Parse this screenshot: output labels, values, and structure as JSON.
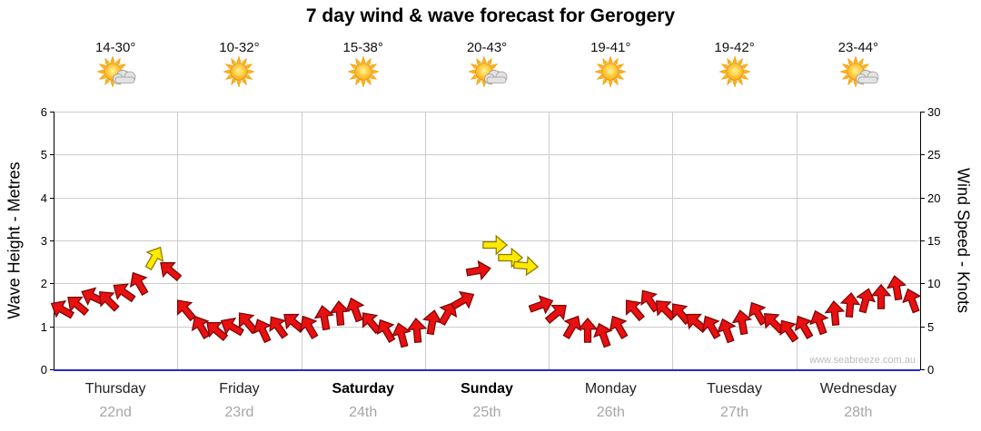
{
  "title": "7 day wind & wave forecast for Gerogery",
  "watermark": "www.seabreeze.com.au",
  "axes": {
    "left": {
      "label": "Wave Height - Metres",
      "range": [
        0,
        6
      ],
      "ticks": [
        "0",
        "1",
        "2",
        "3",
        "4",
        "5",
        "6"
      ]
    },
    "right": {
      "label": "Wind Speed - Knots",
      "range": [
        0,
        30
      ],
      "ticks": [
        "0",
        "5",
        "10",
        "15",
        "20",
        "25",
        "30"
      ]
    }
  },
  "days": [
    {
      "name": "Thursday",
      "date": "22nd",
      "temp": "14-30°",
      "icon": "sun-cloud-icon",
      "bold": false
    },
    {
      "name": "Friday",
      "date": "23rd",
      "temp": "10-32°",
      "icon": "sun-icon",
      "bold": false
    },
    {
      "name": "Saturday",
      "date": "24th",
      "temp": "15-38°",
      "icon": "sun-icon",
      "bold": true
    },
    {
      "name": "Sunday",
      "date": "25th",
      "temp": "20-43°",
      "icon": "sun-cloud-icon",
      "bold": true
    },
    {
      "name": "Monday",
      "date": "26th",
      "temp": "19-41°",
      "icon": "sun-icon",
      "bold": false
    },
    {
      "name": "Tuesday",
      "date": "27th",
      "temp": "19-42°",
      "icon": "sun-icon",
      "bold": false
    },
    {
      "name": "Wednesday",
      "date": "28th",
      "temp": "23-44°",
      "icon": "sun-cloud-icon",
      "bold": false
    }
  ],
  "colors": {
    "arrow_red": "#e81010",
    "arrow_red_stroke": "#7a0606",
    "arrow_yellow": "#ffe900",
    "arrow_yellow_stroke": "#8a7a00",
    "grid": "#cccccc",
    "axis_bottom_blue": "#2a2acc",
    "date_text": "#a6a6a6"
  },
  "chart_data": {
    "type": "scatter",
    "marker": "wind-arrow",
    "title": "7 day wind & wave forecast for Gerogery",
    "x_unit": "3-hourly slots, 8 per day, 7 days (Thu 22nd - Wed 28th)",
    "y_left_label": "Wave Height - Metres",
    "y_left_range": [
      0,
      6
    ],
    "y_right_label": "Wind Speed - Knots",
    "y_right_range": [
      0,
      30
    ],
    "point_format": "d=day index (0=Thursday), s=slot within day, k=wind speed knots (right axis), a=arrow angle degrees (0=pointing right, clockwise), c=arrow color",
    "points": [
      {
        "d": 0,
        "s": 0,
        "k": 7.0,
        "a": -150,
        "c": "red"
      },
      {
        "d": 0,
        "s": 1,
        "k": 7.5,
        "a": -140,
        "c": "red"
      },
      {
        "d": 0,
        "s": 2,
        "k": 8.5,
        "a": -155,
        "c": "red"
      },
      {
        "d": 0,
        "s": 3,
        "k": 8.0,
        "a": -135,
        "c": "red"
      },
      {
        "d": 0,
        "s": 4,
        "k": 9.0,
        "a": -145,
        "c": "red"
      },
      {
        "d": 0,
        "s": 5,
        "k": 10.0,
        "a": -120,
        "c": "red"
      },
      {
        "d": 0,
        "s": 6,
        "k": 13.0,
        "a": -60,
        "c": "yellow"
      },
      {
        "d": 0,
        "s": 7,
        "k": 11.5,
        "a": -140,
        "c": "red"
      },
      {
        "d": 1,
        "s": 0,
        "k": 7.0,
        "a": -130,
        "c": "red"
      },
      {
        "d": 1,
        "s": 1,
        "k": 5.0,
        "a": -120,
        "c": "red"
      },
      {
        "d": 1,
        "s": 2,
        "k": 4.5,
        "a": -140,
        "c": "red"
      },
      {
        "d": 1,
        "s": 3,
        "k": 5.0,
        "a": -150,
        "c": "red"
      },
      {
        "d": 1,
        "s": 4,
        "k": 5.5,
        "a": -130,
        "c": "red"
      },
      {
        "d": 1,
        "s": 5,
        "k": 4.5,
        "a": -115,
        "c": "red"
      },
      {
        "d": 1,
        "s": 6,
        "k": 5.0,
        "a": -125,
        "c": "red"
      },
      {
        "d": 1,
        "s": 7,
        "k": 5.5,
        "a": -140,
        "c": "red"
      },
      {
        "d": 2,
        "s": 0,
        "k": 5.0,
        "a": -120,
        "c": "red"
      },
      {
        "d": 2,
        "s": 1,
        "k": 6.0,
        "a": -100,
        "c": "red"
      },
      {
        "d": 2,
        "s": 2,
        "k": 6.5,
        "a": -95,
        "c": "red"
      },
      {
        "d": 2,
        "s": 3,
        "k": 7.0,
        "a": -110,
        "c": "red"
      },
      {
        "d": 2,
        "s": 4,
        "k": 5.5,
        "a": -130,
        "c": "red"
      },
      {
        "d": 2,
        "s": 5,
        "k": 4.5,
        "a": -120,
        "c": "red"
      },
      {
        "d": 2,
        "s": 6,
        "k": 4.0,
        "a": -105,
        "c": "red"
      },
      {
        "d": 2,
        "s": 7,
        "k": 4.5,
        "a": -95,
        "c": "red"
      },
      {
        "d": 3,
        "s": 0,
        "k": 5.5,
        "a": -80,
        "c": "red"
      },
      {
        "d": 3,
        "s": 1,
        "k": 6.5,
        "a": -60,
        "c": "red"
      },
      {
        "d": 3,
        "s": 2,
        "k": 8.0,
        "a": -30,
        "c": "red"
      },
      {
        "d": 3,
        "s": 3,
        "k": 11.5,
        "a": -10,
        "c": "red"
      },
      {
        "d": 3,
        "s": 4,
        "k": 14.5,
        "a": 0,
        "c": "yellow"
      },
      {
        "d": 3,
        "s": 5,
        "k": 13.0,
        "a": 0,
        "c": "yellow"
      },
      {
        "d": 3,
        "s": 6,
        "k": 12.0,
        "a": 5,
        "c": "yellow"
      },
      {
        "d": 3,
        "s": 7,
        "k": 7.5,
        "a": -20,
        "c": "red"
      },
      {
        "d": 4,
        "s": 0,
        "k": 6.5,
        "a": -40,
        "c": "red"
      },
      {
        "d": 4,
        "s": 1,
        "k": 5.0,
        "a": -60,
        "c": "red"
      },
      {
        "d": 4,
        "s": 2,
        "k": 4.5,
        "a": -90,
        "c": "red"
      },
      {
        "d": 4,
        "s": 3,
        "k": 4.0,
        "a": -110,
        "c": "red"
      },
      {
        "d": 4,
        "s": 4,
        "k": 5.0,
        "a": -120,
        "c": "red"
      },
      {
        "d": 4,
        "s": 5,
        "k": 7.0,
        "a": -130,
        "c": "red"
      },
      {
        "d": 4,
        "s": 6,
        "k": 8.0,
        "a": -125,
        "c": "red"
      },
      {
        "d": 4,
        "s": 7,
        "k": 7.0,
        "a": -135,
        "c": "red"
      },
      {
        "d": 5,
        "s": 0,
        "k": 6.5,
        "a": -130,
        "c": "red"
      },
      {
        "d": 5,
        "s": 1,
        "k": 5.5,
        "a": -140,
        "c": "red"
      },
      {
        "d": 5,
        "s": 2,
        "k": 5.0,
        "a": -120,
        "c": "red"
      },
      {
        "d": 5,
        "s": 3,
        "k": 4.5,
        "a": -110,
        "c": "red"
      },
      {
        "d": 5,
        "s": 4,
        "k": 5.5,
        "a": -100,
        "c": "red"
      },
      {
        "d": 5,
        "s": 5,
        "k": 6.5,
        "a": -120,
        "c": "red"
      },
      {
        "d": 5,
        "s": 6,
        "k": 5.5,
        "a": -135,
        "c": "red"
      },
      {
        "d": 5,
        "s": 7,
        "k": 4.5,
        "a": -125,
        "c": "red"
      },
      {
        "d": 6,
        "s": 0,
        "k": 5.0,
        "a": -120,
        "c": "red"
      },
      {
        "d": 6,
        "s": 1,
        "k": 5.5,
        "a": -110,
        "c": "red"
      },
      {
        "d": 6,
        "s": 2,
        "k": 6.5,
        "a": -95,
        "c": "red"
      },
      {
        "d": 6,
        "s": 3,
        "k": 7.5,
        "a": -85,
        "c": "red"
      },
      {
        "d": 6,
        "s": 4,
        "k": 8.0,
        "a": -75,
        "c": "red"
      },
      {
        "d": 6,
        "s": 5,
        "k": 8.5,
        "a": -90,
        "c": "red"
      },
      {
        "d": 6,
        "s": 6,
        "k": 9.5,
        "a": -100,
        "c": "red"
      },
      {
        "d": 6,
        "s": 7,
        "k": 8.0,
        "a": -110,
        "c": "red"
      }
    ]
  }
}
